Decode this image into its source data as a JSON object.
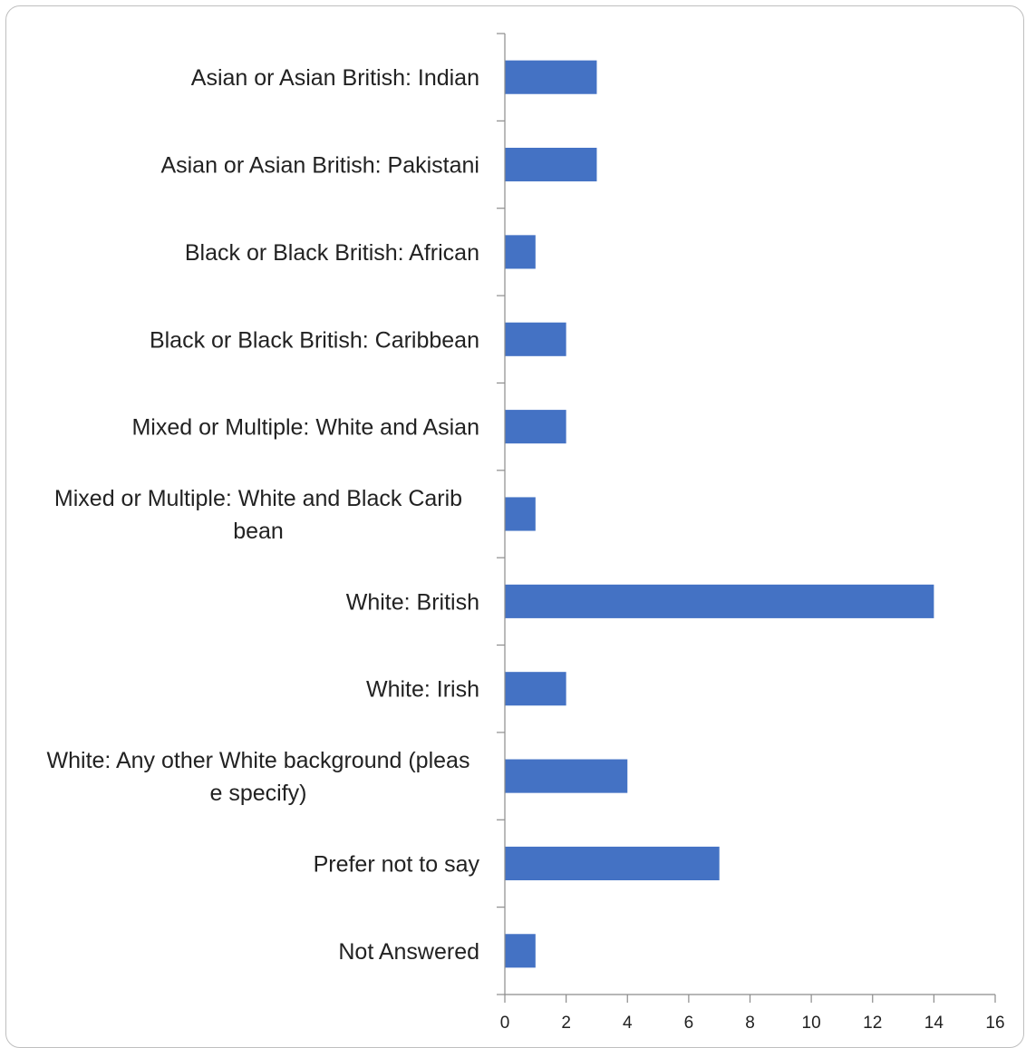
{
  "chart_data": {
    "type": "bar",
    "orientation": "horizontal",
    "categories": [
      "Asian or Asian British: Indian",
      "Asian or Asian British: Pakistani",
      "Black or Black British: African",
      "Black or Black British: Caribbean",
      "Mixed or Multiple: White and Asian",
      "Mixed or Multiple: White and Black Caribbean",
      "White: British",
      "White: Irish",
      "White: Any other White background (please specify)",
      "Prefer not to say",
      "Not Answered"
    ],
    "category_label_lines": [
      [
        "Asian or Asian British: Indian"
      ],
      [
        "Asian or Asian British: Pakistani"
      ],
      [
        "Black or Black British: African"
      ],
      [
        "Black or Black British: Caribbean"
      ],
      [
        "Mixed or Multiple: White and Asian"
      ],
      [
        "Mixed or Multiple: White and Black Carib",
        "bean"
      ],
      [
        "White: British"
      ],
      [
        "White: Irish"
      ],
      [
        "White: Any other White background (pleas",
        "e specify)"
      ],
      [
        "Prefer not to say"
      ],
      [
        "Not Answered"
      ]
    ],
    "values": [
      3,
      3,
      1,
      2,
      2,
      1,
      14,
      2,
      4,
      7,
      1
    ],
    "xlim": [
      0,
      16
    ],
    "x_ticks": [
      0,
      2,
      4,
      6,
      8,
      10,
      12,
      14,
      16
    ],
    "bar_color": "#4472c4",
    "axis_color": "#8c8c8c",
    "grid": false,
    "legend": "none",
    "title": "",
    "xlabel": "",
    "ylabel": ""
  }
}
